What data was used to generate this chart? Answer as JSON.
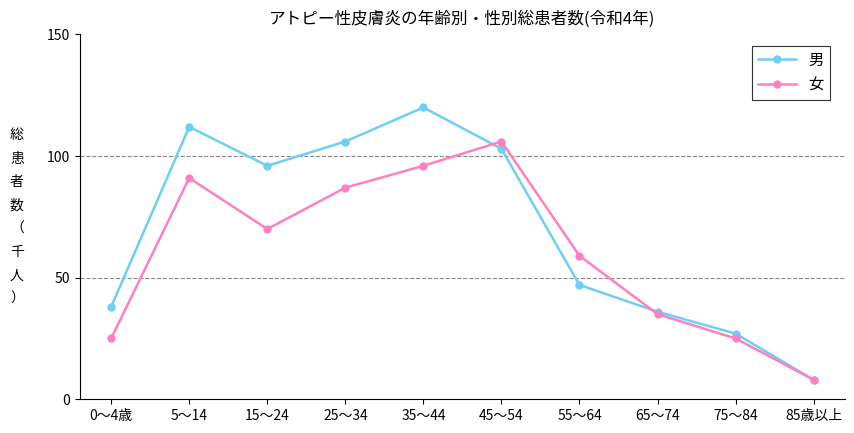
{
  "title": "アトピー性皮膚炎の年齢別・性別総患者数(令和4年)",
  "categories": [
    "0〜4歳",
    "5〜14",
    "15〜24",
    "25〜34",
    "35〜44",
    "45〜54",
    "55〜64",
    "65〜74",
    "75〜84",
    "85歳以上"
  ],
  "male_values": [
    38,
    112,
    96,
    106,
    120,
    103,
    47,
    36,
    27,
    8
  ],
  "female_values": [
    25,
    91,
    70,
    87,
    96,
    106,
    59,
    35,
    25,
    8
  ],
  "male_color": "#6ecff6",
  "female_color": "#ff80c0",
  "ylabel_chars": [
    "総",
    "患",
    "者",
    "数",
    "（",
    "千",
    "人",
    "）"
  ],
  "ylim": [
    0,
    150
  ],
  "yticks": [
    0,
    50,
    100,
    150
  ],
  "legend_male": "男",
  "legend_female": "女",
  "grid_color": "#888888",
  "title_fontsize": 12,
  "tick_fontsize": 10,
  "legend_fontsize": 11
}
